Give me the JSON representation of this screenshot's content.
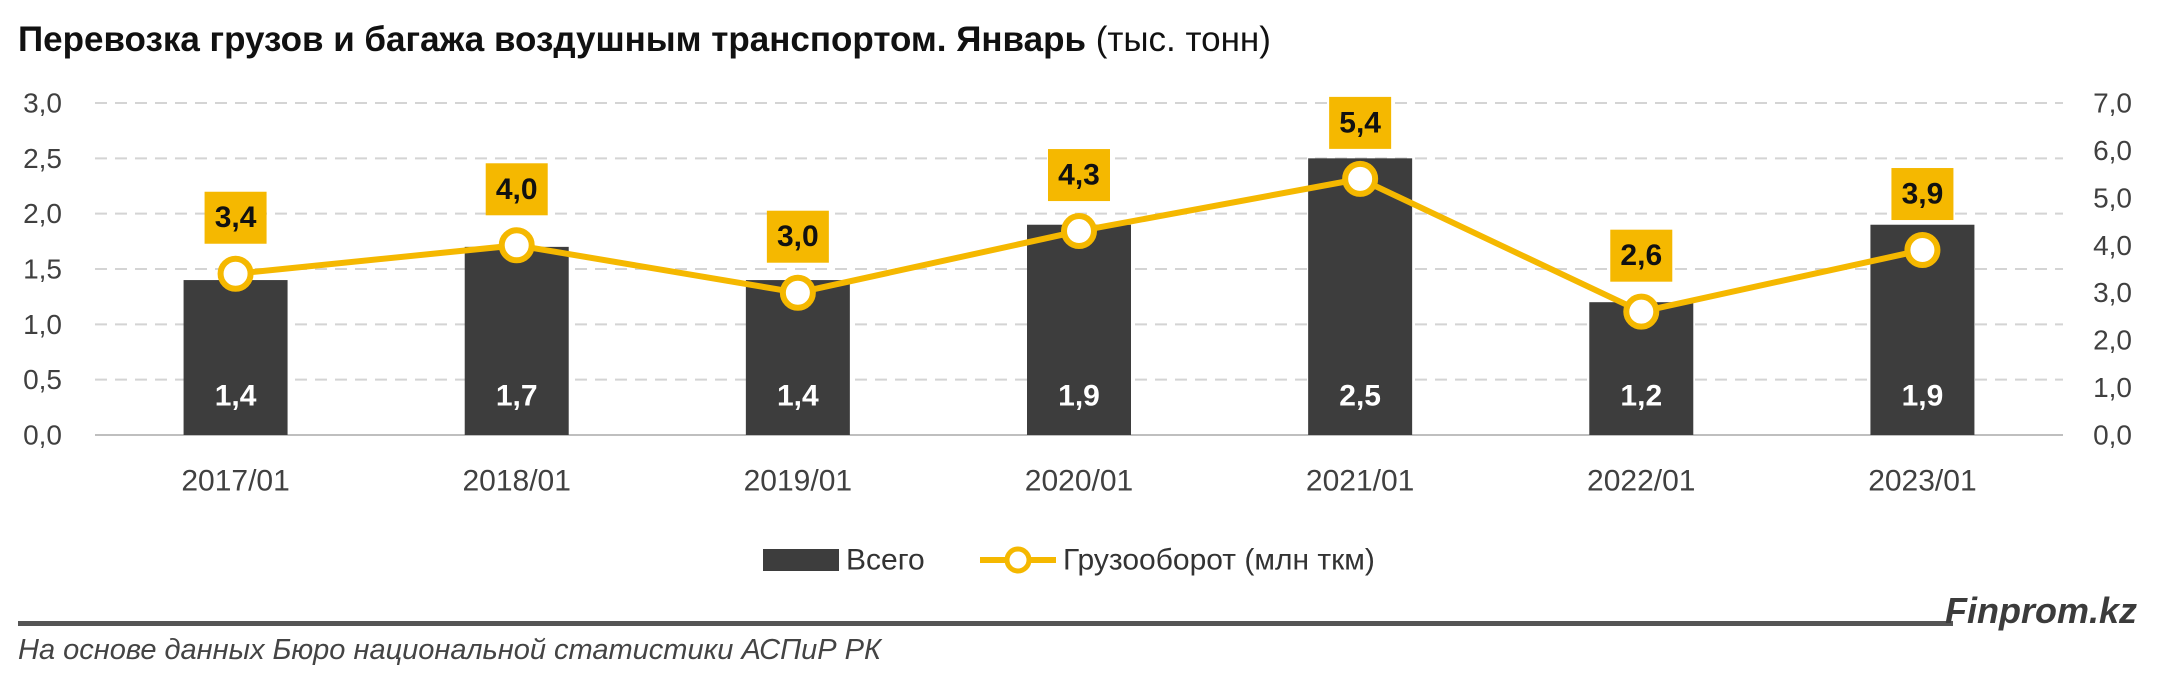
{
  "title": {
    "main": "Перевозка грузов и багажа воздушным транспортом. Январь",
    "unit": " (тыс. тонн)"
  },
  "chart_data": {
    "type": "bar",
    "categories": [
      "2017/01",
      "2018/01",
      "2019/01",
      "2020/01",
      "2021/01",
      "2022/01",
      "2023/01"
    ],
    "series": [
      {
        "name": "Всего",
        "type": "bar",
        "axis": "left",
        "color": "#3d3d3d",
        "values": [
          1.4,
          1.7,
          1.4,
          1.9,
          2.5,
          1.2,
          1.9
        ],
        "labels": [
          "1,4",
          "1,7",
          "1,4",
          "1,9",
          "2,5",
          "1,2",
          "1,9"
        ]
      },
      {
        "name": "Грузооборот (млн ткм)",
        "type": "line",
        "axis": "right",
        "color": "#f5b800",
        "values": [
          3.4,
          4.0,
          3.0,
          4.3,
          5.4,
          2.6,
          3.9
        ],
        "labels": [
          "3,4",
          "4,0",
          "3,0",
          "4,3",
          "5,4",
          "2,6",
          "3,9"
        ]
      }
    ],
    "y_left": {
      "range": [
        0,
        3.0
      ],
      "ticks": [
        0,
        0.5,
        1.0,
        1.5,
        2.0,
        2.5,
        3.0
      ],
      "tick_labels": [
        "0,0",
        "0,5",
        "1,0",
        "1,5",
        "2,0",
        "2,5",
        "3,0"
      ]
    },
    "y_right": {
      "range": [
        0,
        7.0
      ],
      "ticks": [
        0,
        1,
        2,
        3,
        4,
        5,
        6,
        7
      ],
      "tick_labels": [
        "0,0",
        "1,0",
        "2,0",
        "3,0",
        "4,0",
        "5,0",
        "6,0",
        "7,0"
      ]
    },
    "grid": true,
    "legend_position": "bottom"
  },
  "footer": {
    "brand": "Finprom.kz",
    "source": "На основе данных Бюро национальной статистики АСПиР РК"
  }
}
